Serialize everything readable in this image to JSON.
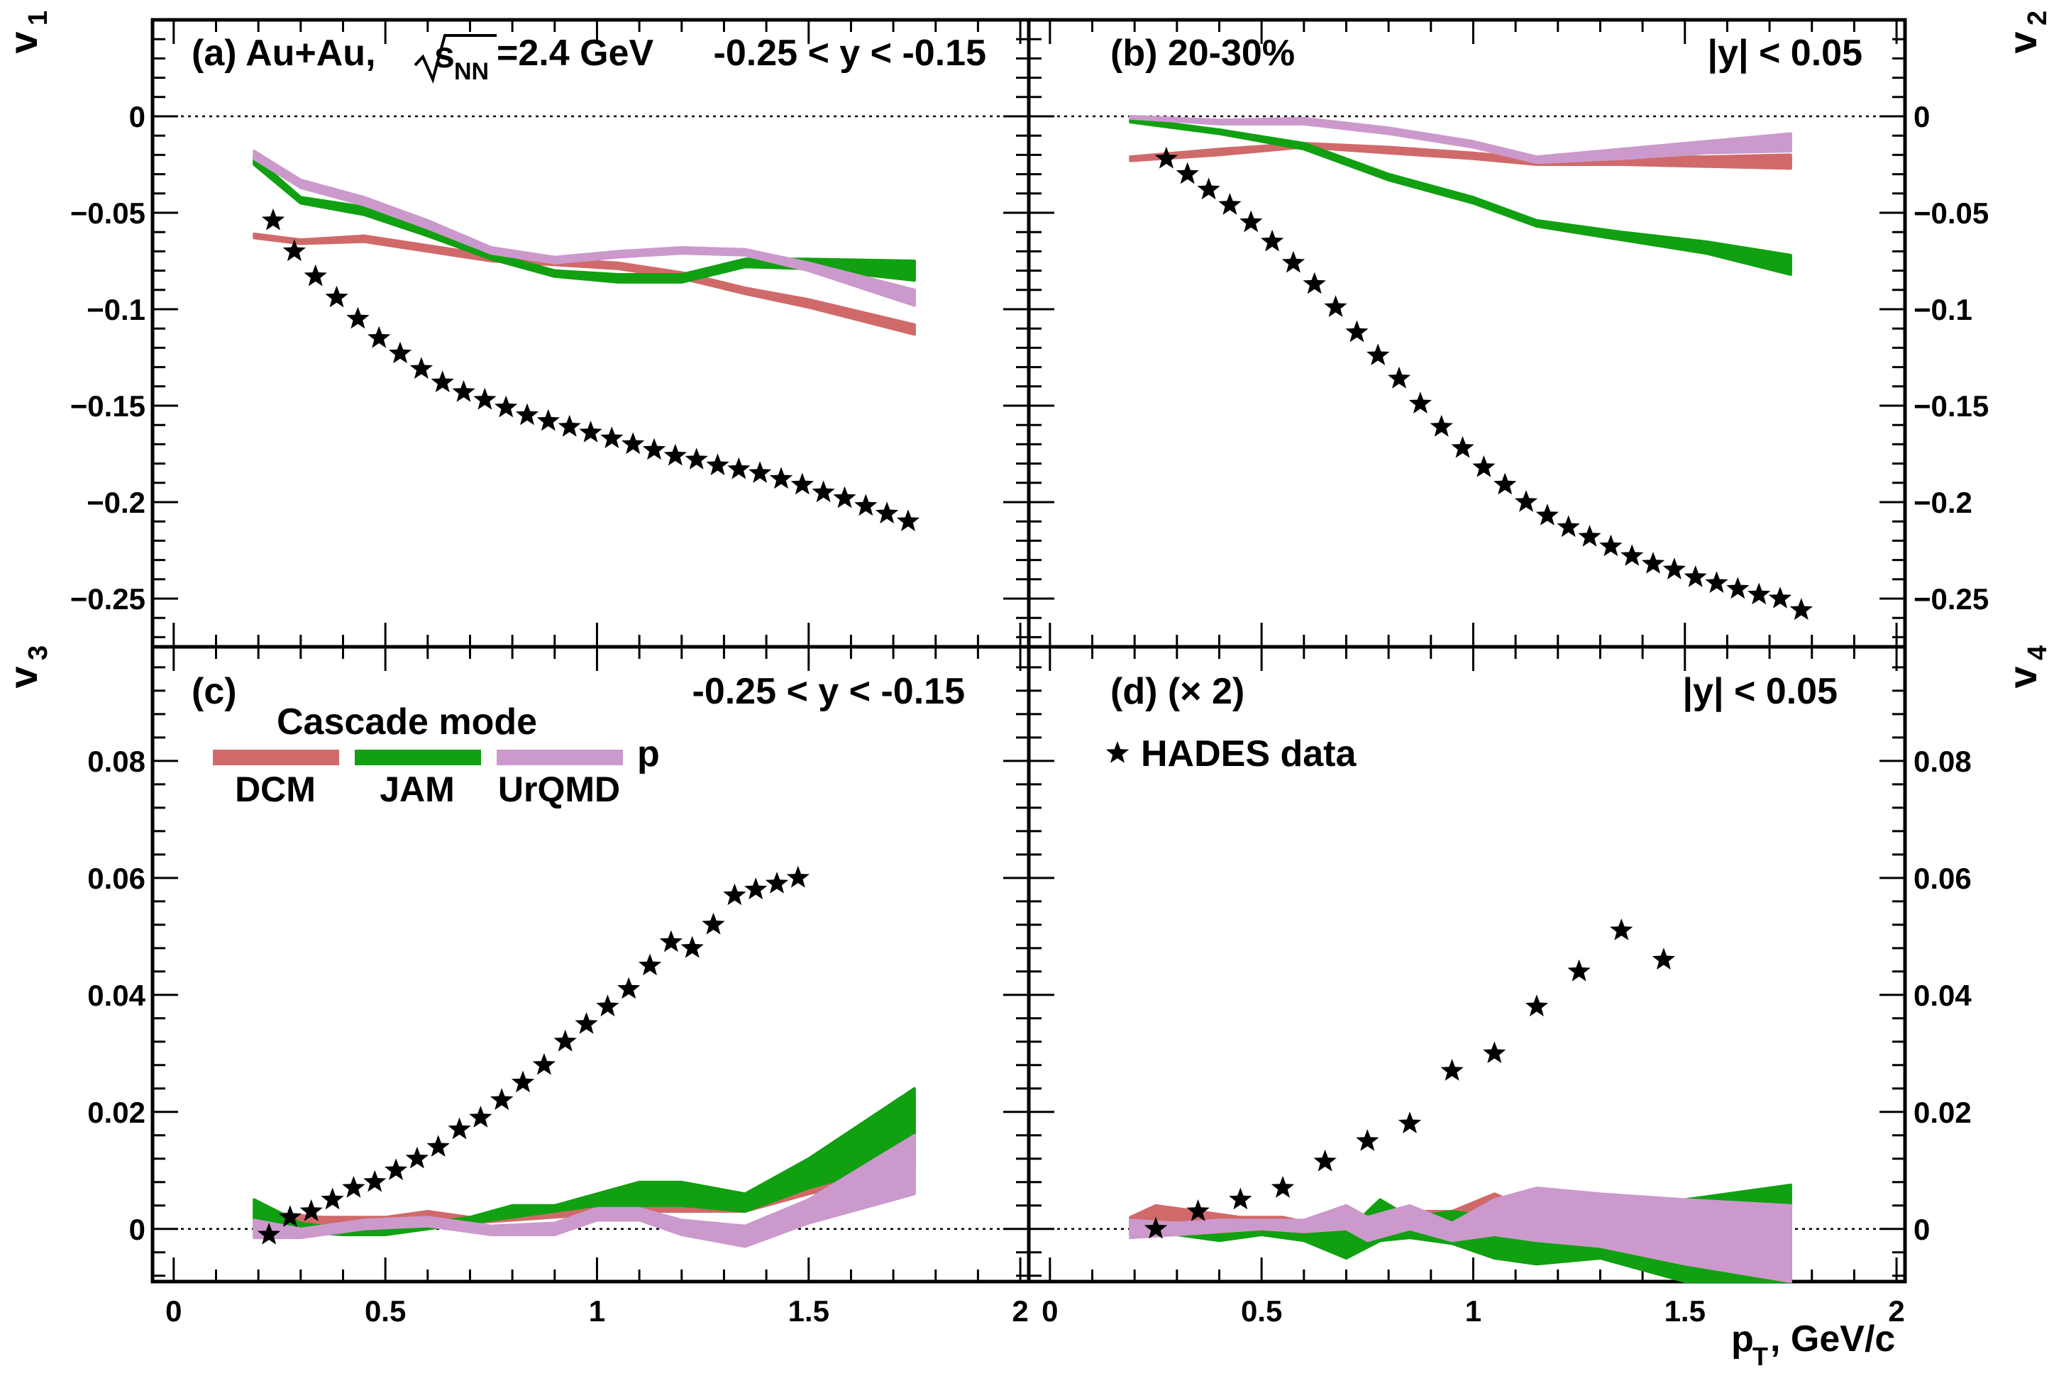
{
  "figure": {
    "x_axis_label": "p",
    "x_axis_label_sub": "T",
    "x_axis_label_rest": ", GeV/c",
    "legend": {
      "title": "Cascade mode",
      "particle": "p",
      "data_label": "HADES data",
      "models": [
        {
          "name": "DCM",
          "color": "#d06a6a"
        },
        {
          "name": "JAM",
          "color": "#11a011"
        },
        {
          "name": "UrQMD",
          "color": "#cc99cc"
        }
      ]
    }
  },
  "panels": {
    "a": {
      "label": "(a) Au+Au,",
      "energy_sqrt": "s",
      "energy_sub": "NN",
      "energy_value": "=2.4 GeV",
      "rapidity": "-0.25 < y < -0.15",
      "ylabel": "v",
      "ylabel_sub": "1"
    },
    "b": {
      "label": "(b)  20-30%",
      "rapidity": "|y| < 0.05",
      "ylabel": "v",
      "ylabel_sub": "2"
    },
    "c": {
      "label": "(c)",
      "rapidity": "-0.25 < y < -0.15",
      "ylabel": "v",
      "ylabel_sub": "3"
    },
    "d": {
      "label": "(d)  (× 2)",
      "rapidity": "|y| < 0.05",
      "ylabel": "v",
      "ylabel_sub": "4"
    }
  },
  "chart_data": [
    {
      "panel": "a",
      "type": "line",
      "title": "v1 vs pT",
      "xlim": [
        -0.05,
        2.02
      ],
      "ylim": [
        -0.275,
        0.05
      ],
      "ytick_values": [
        0,
        -0.05,
        -0.1,
        -0.15,
        -0.2,
        -0.25
      ],
      "ytick_labels": [
        "0",
        "−0.05",
        "−0.1",
        "−0.15",
        "−0.2",
        "−0.25"
      ],
      "xtick_values": [
        0,
        0.5,
        1,
        1.5,
        2
      ],
      "xtick_labels": [
        "0",
        "0.5",
        "1",
        "1.5",
        "2"
      ],
      "series": [
        {
          "name": "HADES data",
          "type": "scatter",
          "x": [
            0.235,
            0.285,
            0.335,
            0.385,
            0.435,
            0.485,
            0.535,
            0.585,
            0.635,
            0.685,
            0.735,
            0.785,
            0.835,
            0.885,
            0.935,
            0.985,
            1.035,
            1.085,
            1.135,
            1.185,
            1.235,
            1.285,
            1.335,
            1.385,
            1.435,
            1.485,
            1.535,
            1.585,
            1.635,
            1.685,
            1.735
          ],
          "y": [
            -0.054,
            -0.07,
            -0.083,
            -0.094,
            -0.105,
            -0.115,
            -0.123,
            -0.131,
            -0.138,
            -0.143,
            -0.147,
            -0.151,
            -0.155,
            -0.158,
            -0.161,
            -0.164,
            -0.167,
            -0.17,
            -0.173,
            -0.176,
            -0.178,
            -0.181,
            -0.183,
            -0.185,
            -0.188,
            -0.191,
            -0.195,
            -0.198,
            -0.202,
            -0.206,
            -0.21
          ]
        },
        {
          "name": "DCM",
          "x": [
            0.19,
            0.3,
            0.45,
            0.6,
            0.75,
            0.9,
            1.05,
            1.2,
            1.35,
            1.5,
            1.75
          ],
          "lo": [
            -0.063,
            -0.066,
            -0.065,
            -0.07,
            -0.075,
            -0.077,
            -0.079,
            -0.084,
            -0.092,
            -0.099,
            -0.113
          ],
          "hi": [
            -0.061,
            -0.064,
            -0.062,
            -0.067,
            -0.072,
            -0.074,
            -0.076,
            -0.081,
            -0.089,
            -0.095,
            -0.108
          ]
        },
        {
          "name": "JAM",
          "x": [
            0.19,
            0.3,
            0.45,
            0.6,
            0.75,
            0.9,
            1.05,
            1.2,
            1.35,
            1.5,
            1.75
          ],
          "lo": [
            -0.025,
            -0.045,
            -0.051,
            -0.062,
            -0.074,
            -0.083,
            -0.086,
            -0.086,
            -0.078,
            -0.079,
            -0.085
          ],
          "hi": [
            -0.021,
            -0.042,
            -0.047,
            -0.058,
            -0.071,
            -0.08,
            -0.082,
            -0.082,
            -0.074,
            -0.074,
            -0.075
          ]
        },
        {
          "name": "UrQMD",
          "x": [
            0.19,
            0.3,
            0.45,
            0.6,
            0.75,
            0.9,
            1.05,
            1.2,
            1.35,
            1.5,
            1.75
          ],
          "lo": [
            -0.022,
            -0.037,
            -0.046,
            -0.058,
            -0.071,
            -0.076,
            -0.073,
            -0.071,
            -0.072,
            -0.08,
            -0.098
          ],
          "hi": [
            -0.018,
            -0.033,
            -0.042,
            -0.054,
            -0.068,
            -0.073,
            -0.07,
            -0.068,
            -0.069,
            -0.076,
            -0.09
          ]
        }
      ]
    },
    {
      "panel": "b",
      "type": "line",
      "title": "v2 vs pT",
      "xlim": [
        -0.05,
        2.02
      ],
      "ylim": [
        -0.275,
        0.05
      ],
      "ytick_values": [
        0,
        -0.05,
        -0.1,
        -0.15,
        -0.2,
        -0.25
      ],
      "ytick_labels": [
        "0",
        "−0.05",
        "−0.1",
        "−0.15",
        "−0.2",
        "−0.25"
      ],
      "series": [
        {
          "name": "HADES data",
          "type": "scatter",
          "x": [
            0.275,
            0.325,
            0.375,
            0.425,
            0.475,
            0.525,
            0.575,
            0.625,
            0.675,
            0.725,
            0.775,
            0.825,
            0.875,
            0.925,
            0.975,
            1.025,
            1.075,
            1.125,
            1.175,
            1.225,
            1.275,
            1.325,
            1.375,
            1.425,
            1.475,
            1.525,
            1.575,
            1.625,
            1.675,
            1.725,
            1.775
          ],
          "y": [
            -0.022,
            -0.03,
            -0.038,
            -0.046,
            -0.055,
            -0.065,
            -0.076,
            -0.087,
            -0.099,
            -0.112,
            -0.124,
            -0.136,
            -0.149,
            -0.161,
            -0.172,
            -0.182,
            -0.191,
            -0.2,
            -0.207,
            -0.213,
            -0.218,
            -0.223,
            -0.228,
            -0.232,
            -0.235,
            -0.239,
            -0.242,
            -0.245,
            -0.248,
            -0.25,
            -0.256
          ]
        },
        {
          "name": "DCM",
          "x": [
            0.19,
            0.4,
            0.6,
            0.8,
            1.0,
            1.15,
            1.35,
            1.55,
            1.75
          ],
          "lo": [
            -0.023,
            -0.02,
            -0.016,
            -0.019,
            -0.022,
            -0.025,
            -0.025,
            -0.026,
            -0.027
          ],
          "hi": [
            -0.021,
            -0.017,
            -0.014,
            -0.016,
            -0.019,
            -0.022,
            -0.021,
            -0.021,
            -0.02
          ]
        },
        {
          "name": "JAM",
          "x": [
            0.19,
            0.4,
            0.6,
            0.8,
            1.0,
            1.15,
            1.35,
            1.55,
            1.75
          ],
          "lo": [
            -0.003,
            -0.009,
            -0.017,
            -0.033,
            -0.045,
            -0.057,
            -0.064,
            -0.071,
            -0.082
          ],
          "hi": [
            -0.001,
            -0.007,
            -0.014,
            -0.03,
            -0.042,
            -0.054,
            -0.06,
            -0.065,
            -0.072
          ]
        },
        {
          "name": "UrQMD",
          "x": [
            0.19,
            0.4,
            0.6,
            0.8,
            1.0,
            1.15,
            1.35,
            1.55,
            1.75
          ],
          "lo": [
            -0.001,
            -0.004,
            -0.004,
            -0.009,
            -0.016,
            -0.024,
            -0.022,
            -0.019,
            -0.018
          ],
          "hi": [
            0.0,
            -0.002,
            -0.001,
            -0.006,
            -0.013,
            -0.021,
            -0.017,
            -0.013,
            -0.009
          ]
        }
      ]
    },
    {
      "panel": "c",
      "type": "line",
      "title": "v3 vs pT",
      "xlim": [
        -0.05,
        2.02
      ],
      "ylim": [
        -0.009,
        0.0995
      ],
      "ytick_values": [
        0,
        0.02,
        0.04,
        0.06,
        0.08
      ],
      "ytick_labels": [
        "0",
        "0.02",
        "0.04",
        "0.06",
        "0.08"
      ],
      "series": [
        {
          "name": "HADES data",
          "type": "scatter",
          "x": [
            0.225,
            0.275,
            0.325,
            0.375,
            0.425,
            0.475,
            0.525,
            0.575,
            0.625,
            0.675,
            0.725,
            0.775,
            0.825,
            0.875,
            0.925,
            0.975,
            1.025,
            1.075,
            1.125,
            1.175,
            1.225,
            1.275,
            1.325,
            1.375,
            1.425,
            1.475
          ],
          "y": [
            -0.001,
            0.002,
            0.003,
            0.005,
            0.007,
            0.008,
            0.01,
            0.012,
            0.014,
            0.017,
            0.019,
            0.022,
            0.025,
            0.028,
            0.032,
            0.035,
            0.038,
            0.041,
            0.045,
            0.049,
            0.048,
            0.052,
            0.057,
            0.058,
            0.059,
            0.06
          ]
        },
        {
          "name": "DCM",
          "x": [
            0.19,
            0.35,
            0.5,
            0.6,
            0.7,
            0.8,
            0.9,
            1.0,
            1.1,
            1.2,
            1.35,
            1.5,
            1.75
          ],
          "lo": [
            0.0015,
            0.0005,
            0.001,
            0.001,
            0.001,
            0.0015,
            0.002,
            0.0025,
            0.003,
            0.003,
            0.003,
            0.006,
            0.01
          ],
          "hi": [
            0.003,
            0.002,
            0.002,
            0.003,
            0.002,
            0.003,
            0.004,
            0.0045,
            0.0045,
            0.0045,
            0.004,
            0.008,
            0.012
          ]
        },
        {
          "name": "JAM",
          "x": [
            0.19,
            0.3,
            0.4,
            0.5,
            0.6,
            0.7,
            0.8,
            0.9,
            1.0,
            1.1,
            1.2,
            1.35,
            1.5,
            1.75
          ],
          "lo": [
            0.0,
            -0.0005,
            -0.001,
            -0.001,
            0.0,
            0.001,
            0.002,
            0.003,
            0.004,
            0.004,
            0.004,
            0.003,
            0.007,
            0.012
          ],
          "hi": [
            0.005,
            0.001,
            0.0,
            0.0,
            0.001,
            0.002,
            0.004,
            0.004,
            0.006,
            0.008,
            0.008,
            0.006,
            0.012,
            0.024
          ]
        },
        {
          "name": "UrQMD",
          "x": [
            0.19,
            0.3,
            0.45,
            0.6,
            0.75,
            0.9,
            1.0,
            1.1,
            1.2,
            1.35,
            1.5,
            1.75
          ],
          "lo": [
            -0.0015,
            -0.0015,
            0.0,
            0.0005,
            -0.001,
            -0.001,
            0.0015,
            0.0015,
            -0.001,
            -0.003,
            0.001,
            0.006
          ],
          "hi": [
            0.0015,
            0.0,
            0.0015,
            0.002,
            0.0005,
            0.001,
            0.0035,
            0.0035,
            0.0015,
            0.0005,
            0.005,
            0.016
          ]
        }
      ]
    },
    {
      "panel": "d",
      "type": "line",
      "title": "v4 (x2) vs pT",
      "xlim": [
        -0.05,
        2.02
      ],
      "ylim": [
        -0.009,
        0.0995
      ],
      "ytick_values": [
        0,
        0.02,
        0.04,
        0.06,
        0.08
      ],
      "ytick_labels": [
        "0",
        "0.02",
        "0.04",
        "0.06",
        "0.08"
      ],
      "series": [
        {
          "name": "HADES data",
          "type": "scatter",
          "x": [
            0.25,
            0.35,
            0.45,
            0.55,
            0.65,
            0.75,
            0.85,
            0.95,
            1.05,
            1.15,
            1.25,
            1.35,
            1.45
          ],
          "y": [
            0.0,
            0.003,
            0.005,
            0.007,
            0.0115,
            0.015,
            0.018,
            0.027,
            0.03,
            0.038,
            0.044,
            0.051,
            0.046
          ]
        },
        {
          "name": "DCM",
          "x": [
            0.19,
            0.25,
            0.35,
            0.45,
            0.55,
            0.65,
            0.75,
            0.85,
            0.95,
            1.05,
            1.15
          ],
          "lo": [
            0.0,
            0.0015,
            0.0015,
            0.0,
            0.0,
            -0.0015,
            -0.001,
            0.0,
            0.001,
            0.001,
            0.0
          ],
          "hi": [
            0.002,
            0.004,
            0.003,
            0.002,
            0.002,
            0.0005,
            0.002,
            0.003,
            0.003,
            0.006,
            0.003
          ]
        },
        {
          "name": "JAM",
          "x": [
            0.19,
            0.3,
            0.4,
            0.5,
            0.6,
            0.7,
            0.78,
            0.85,
            0.95,
            1.05,
            1.15,
            1.3,
            1.5,
            1.75
          ],
          "lo": [
            -0.001,
            -0.001,
            -0.002,
            -0.001,
            -0.002,
            -0.005,
            -0.002,
            -0.0015,
            -0.0025,
            -0.005,
            -0.006,
            -0.005,
            -0.009,
            -0.009
          ],
          "hi": [
            0.0015,
            0.0005,
            0.0005,
            0.001,
            0.0005,
            -0.0005,
            0.005,
            0.002,
            0.003,
            0.002,
            0.001,
            0.0005,
            0.005,
            0.0075
          ]
        },
        {
          "name": "UrQMD",
          "x": [
            0.19,
            0.3,
            0.4,
            0.5,
            0.6,
            0.7,
            0.75,
            0.85,
            0.95,
            1.05,
            1.15,
            1.3,
            1.5,
            1.75
          ],
          "lo": [
            -0.0015,
            -0.001,
            -0.0005,
            0.0,
            -0.0005,
            0.0,
            -0.002,
            0.0,
            -0.002,
            -0.001,
            -0.002,
            -0.003,
            -0.006,
            -0.009
          ],
          "hi": [
            0.0015,
            0.001,
            0.0015,
            0.0015,
            0.0015,
            0.004,
            0.002,
            0.004,
            0.001,
            0.005,
            0.007,
            0.006,
            0.005,
            0.004
          ]
        }
      ]
    }
  ]
}
